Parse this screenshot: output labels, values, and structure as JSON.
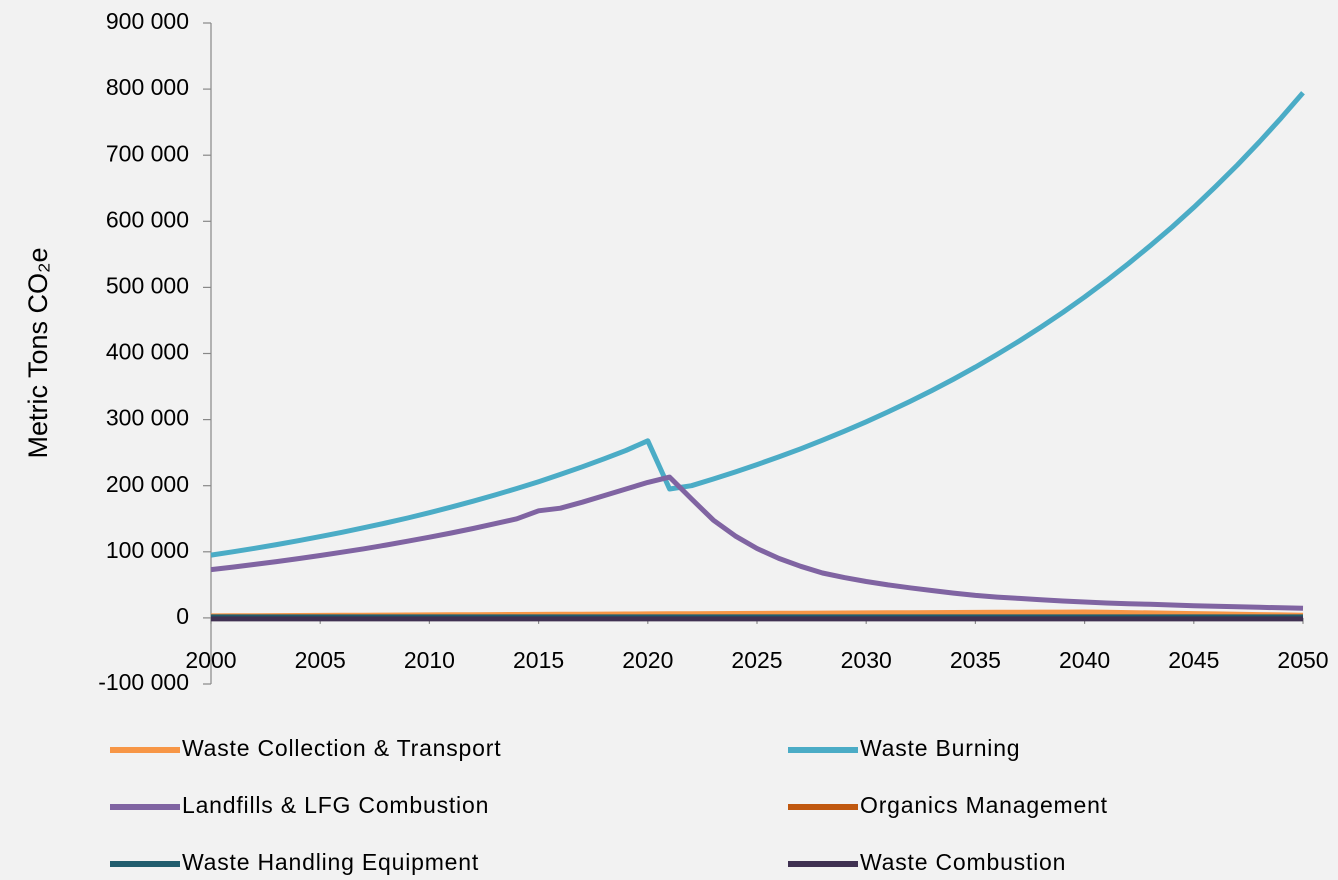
{
  "chart_data": {
    "type": "line",
    "ylabel": "Metric Tons CO₂e",
    "x": [
      2000,
      2001,
      2002,
      2003,
      2004,
      2005,
      2006,
      2007,
      2008,
      2009,
      2010,
      2011,
      2012,
      2013,
      2014,
      2015,
      2016,
      2017,
      2018,
      2019,
      2020,
      2021,
      2022,
      2023,
      2024,
      2025,
      2026,
      2027,
      2028,
      2029,
      2030,
      2031,
      2032,
      2033,
      2034,
      2035,
      2036,
      2037,
      2038,
      2039,
      2040,
      2041,
      2042,
      2043,
      2044,
      2045,
      2046,
      2047,
      2048,
      2049,
      2050
    ],
    "xlim": [
      2000,
      2050
    ],
    "xticks": [
      2000,
      2005,
      2010,
      2015,
      2020,
      2025,
      2030,
      2035,
      2040,
      2045,
      2050
    ],
    "ylim": [
      -100000,
      900000
    ],
    "yticks": [
      {
        "value": -100000,
        "label": "-100 000"
      },
      0,
      {
        "value": 100000,
        "label": "100 000"
      },
      {
        "value": 200000,
        "label": "200 000"
      },
      {
        "value": 300000,
        "label": "300 000"
      },
      {
        "value": 400000,
        "label": "400 000"
      },
      {
        "value": 500000,
        "label": "500 000"
      },
      {
        "value": 600000,
        "label": "600 000"
      },
      {
        "value": 700000,
        "label": "700 000"
      },
      {
        "value": 800000,
        "label": "800 000"
      },
      {
        "value": 900000,
        "label": "900 000"
      }
    ],
    "grid": false,
    "legend": "bottom",
    "series": [
      {
        "name": "Waste Collection & Transport",
        "color": "#f79646",
        "values": [
          3000,
          3150,
          3300,
          3450,
          3600,
          3750,
          3900,
          4050,
          4200,
          4350,
          4500,
          4650,
          4800,
          4950,
          5100,
          5250,
          5400,
          5550,
          5700,
          5850,
          6000,
          6150,
          6300,
          6450,
          6600,
          6750,
          6900,
          7050,
          7200,
          7350,
          7500,
          7650,
          7800,
          7950,
          8100,
          8250,
          8400,
          8550,
          8700,
          8850,
          9000,
          8500,
          8000,
          7500,
          7000,
          6500,
          6000,
          5500,
          5000,
          4500,
          4000
        ]
      },
      {
        "name": "Waste Burning",
        "color": "#4bacc6",
        "values": [
          95000,
          100000,
          105300,
          110900,
          116800,
          123000,
          129500,
          136400,
          143600,
          151200,
          159200,
          167700,
          176500,
          185900,
          195800,
          206100,
          217100,
          228600,
          240700,
          253400,
          268000,
          195000,
          200000,
          210100,
          220700,
          231900,
          243600,
          255900,
          268800,
          282400,
          296700,
          311700,
          327400,
          343900,
          361300,
          379500,
          398700,
          418800,
          440000,
          462200,
          485500,
          510000,
          535800,
          562900,
          591300,
          621100,
          652500,
          685400,
          720000,
          756400,
          794600
        ]
      },
      {
        "name": "Landfills & LFG Combustion",
        "color": "#8064a2",
        "values": [
          73000,
          76800,
          80900,
          85200,
          89700,
          94400,
          99400,
          104600,
          110100,
          116000,
          122100,
          128500,
          135300,
          142500,
          150000,
          162000,
          166000,
          175000,
          185000,
          195000,
          205000,
          213000,
          180000,
          148000,
          124000,
          105000,
          90000,
          78000,
          68000,
          61000,
          55000,
          50000,
          45500,
          41500,
          37500,
          34000,
          31500,
          29500,
          27500,
          25500,
          24000,
          22500,
          21500,
          20500,
          19500,
          18500,
          17500,
          16800,
          16000,
          15300,
          14500
        ]
      },
      {
        "name": "Organics Management",
        "color": "#c0580f",
        "values": [
          500,
          500,
          500,
          500,
          500,
          500,
          500,
          500,
          500,
          500,
          500,
          500,
          500,
          500,
          500,
          500,
          500,
          500,
          500,
          500,
          500,
          500,
          500,
          500,
          500,
          500,
          500,
          500,
          500,
          500,
          500,
          500,
          500,
          500,
          500,
          500,
          500,
          500,
          500,
          500,
          500,
          500,
          500,
          500,
          500,
          500,
          500,
          500,
          500,
          500,
          500
        ]
      },
      {
        "name": "Waste Handling Equipment",
        "color": "#215d6e",
        "values": [
          1500,
          1500,
          1500,
          1500,
          1500,
          1500,
          1500,
          1500,
          1500,
          1500,
          1500,
          1500,
          1500,
          1500,
          1500,
          1500,
          1500,
          1500,
          1500,
          1500,
          1500,
          1500,
          1500,
          1500,
          1500,
          1500,
          1500,
          1500,
          1500,
          1500,
          1500,
          1500,
          1500,
          1500,
          1500,
          1500,
          1500,
          1500,
          1500,
          1500,
          1500,
          1500,
          1500,
          1500,
          1500,
          1500,
          1500,
          1500,
          1500,
          1500,
          1500
        ]
      },
      {
        "name": "Waste Combustion",
        "color": "#403152",
        "values": [
          -1500,
          -1500,
          -1500,
          -1500,
          -1500,
          -1500,
          -1500,
          -1500,
          -1500,
          -1500,
          -1500,
          -1500,
          -1500,
          -1500,
          -1500,
          -1500,
          -1500,
          -1500,
          -1500,
          -1500,
          -1500,
          -1500,
          -1500,
          -1500,
          -1500,
          -1500,
          -1500,
          -1500,
          -1500,
          -1500,
          -1500,
          -1500,
          -1500,
          -1500,
          -1500,
          -1500,
          -1500,
          -1500,
          -1500,
          -1500,
          -1500,
          -1500,
          -1500,
          -1500,
          -1500,
          -1500,
          -1500,
          -1500,
          -1500,
          -1500,
          -1500
        ]
      }
    ]
  }
}
